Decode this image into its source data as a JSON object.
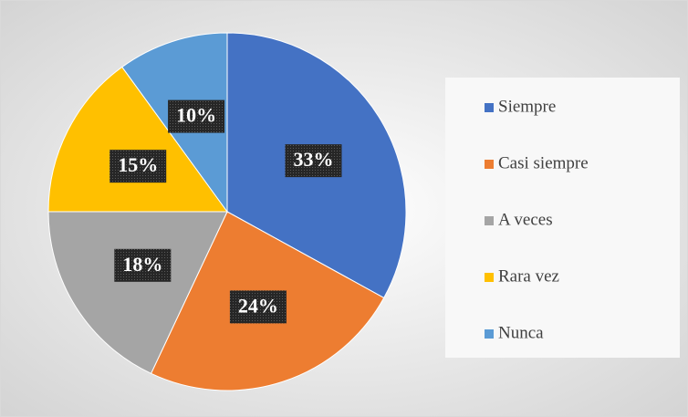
{
  "chart_data": {
    "type": "pie",
    "categories": [
      "Siempre",
      "Casi siempre",
      "A veces",
      "Rara vez",
      "Nunca"
    ],
    "values": [
      33,
      24,
      18,
      15,
      10
    ],
    "value_labels": [
      "33%",
      "24%",
      "18%",
      "15%",
      "10%"
    ],
    "colors": [
      "#4472c4",
      "#ed7d31",
      "#a5a5a5",
      "#ffc000",
      "#5b9bd5"
    ],
    "legend": "right"
  }
}
